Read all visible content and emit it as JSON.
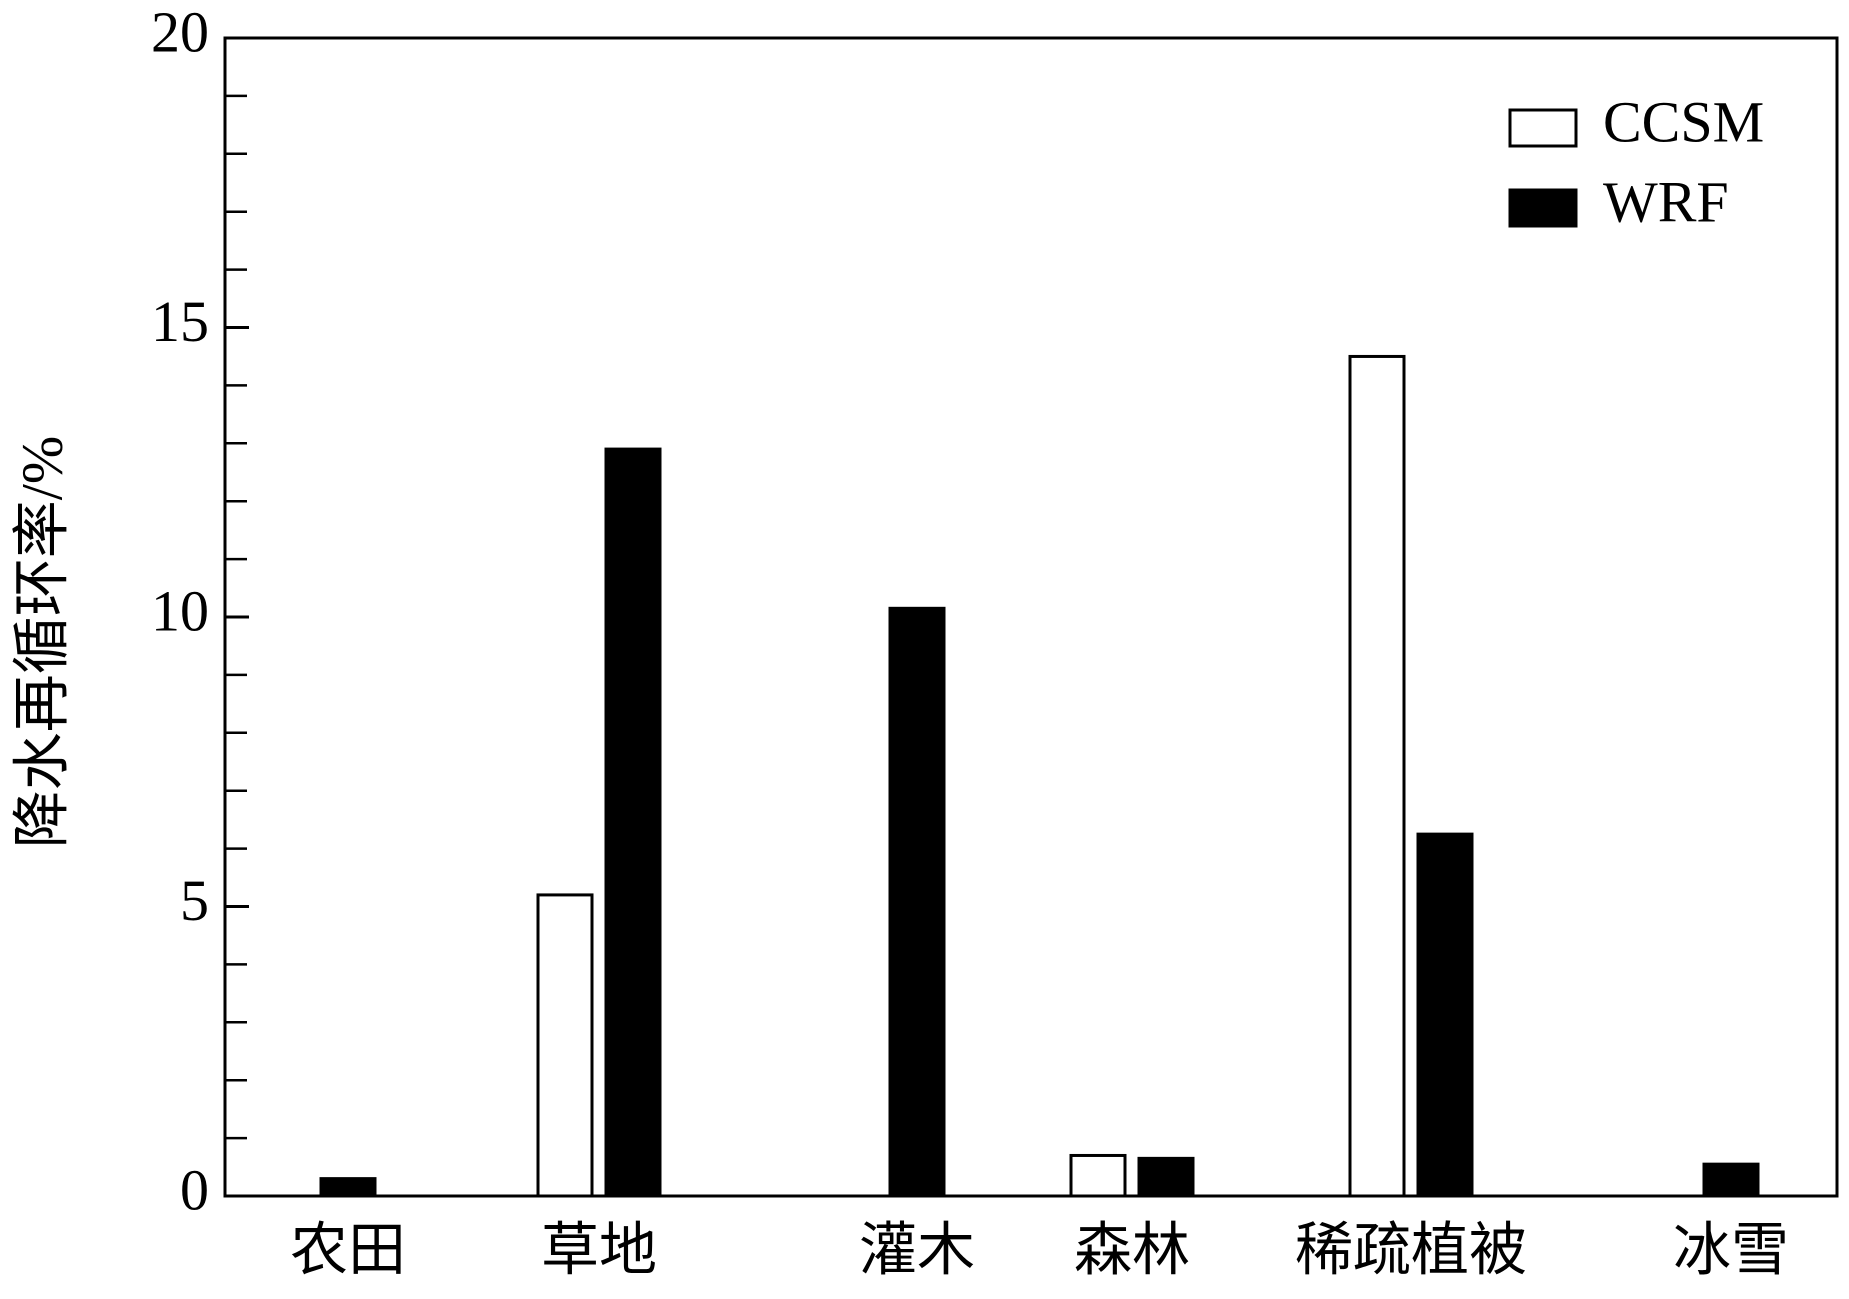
{
  "chart_data": {
    "type": "bar",
    "y_label": "降水再循环率/%",
    "categories": [
      "农田",
      "草地",
      "灌木",
      "森林",
      "稀疏植被",
      "冰雪"
    ],
    "series": [
      {
        "name": "CCSM",
        "color": "#ffffff",
        "values": [
          null,
          5.2,
          null,
          0.7,
          14.5,
          null
        ]
      },
      {
        "name": "WRF",
        "color": "#000000",
        "values": [
          0.3,
          12.9,
          10.15,
          0.65,
          6.25,
          0.55
        ]
      }
    ],
    "ylim": [
      0,
      20
    ],
    "yticks": [
      0,
      5,
      10,
      15,
      20
    ],
    "legend": "upper right"
  }
}
